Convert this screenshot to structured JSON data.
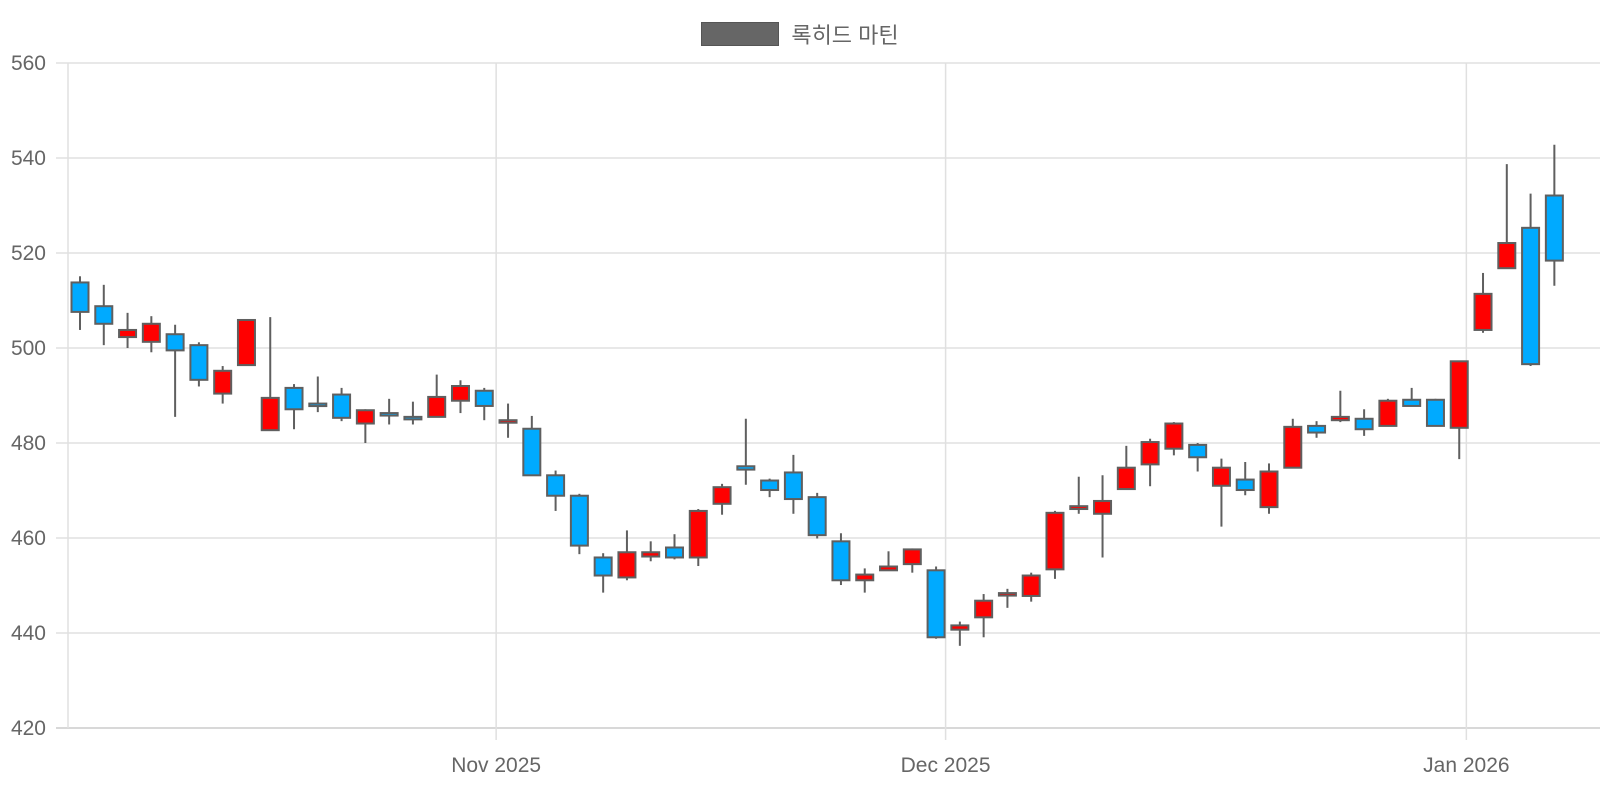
{
  "legend": {
    "label": "록히드 마틴",
    "swatch_color": "#666666"
  },
  "colors": {
    "up": "#ff0000",
    "down": "#00aaff",
    "outline": "#5f5f5f",
    "grid": "#e0e0e0"
  },
  "chart_data": {
    "type": "candlestick",
    "title": "",
    "series_name": "록히드 마틴",
    "xlabel": "",
    "ylabel": "",
    "ylim": [
      420,
      560
    ],
    "yticks": [
      420,
      440,
      460,
      480,
      500,
      520,
      540,
      560
    ],
    "xticks": [
      {
        "label": "Nov 2025",
        "index": 17.5
      },
      {
        "label": "Dec 2025",
        "index": 36.4
      },
      {
        "label": "Jan 2026",
        "index": 58.3
      }
    ],
    "grid": true,
    "legend_position": "top",
    "up_color": "#ff0000",
    "down_color": "#00aaff",
    "candles": [
      {
        "o": 513.8,
        "h": 515.1,
        "l": 503.8,
        "c": 507.6
      },
      {
        "o": 508.8,
        "h": 513.3,
        "l": 500.6,
        "c": 505.1
      },
      {
        "o": 502.3,
        "h": 507.4,
        "l": 500.0,
        "c": 503.8
      },
      {
        "o": 501.3,
        "h": 506.7,
        "l": 499.1,
        "c": 505.1
      },
      {
        "o": 502.9,
        "h": 504.9,
        "l": 485.5,
        "c": 499.5
      },
      {
        "o": 500.6,
        "h": 501.2,
        "l": 491.9,
        "c": 493.3
      },
      {
        "o": 490.4,
        "h": 496.2,
        "l": 488.3,
        "c": 495.2
      },
      {
        "o": 496.4,
        "h": 505.9,
        "l": 496.4,
        "c": 505.9
      },
      {
        "o": 482.7,
        "h": 506.5,
        "l": 482.7,
        "c": 489.5
      },
      {
        "o": 491.6,
        "h": 492.4,
        "l": 482.9,
        "c": 487.1
      },
      {
        "o": 488.3,
        "h": 494.0,
        "l": 486.5,
        "c": 488.1
      },
      {
        "o": 490.2,
        "h": 491.6,
        "l": 484.6,
        "c": 485.3
      },
      {
        "o": 484.1,
        "h": 487.1,
        "l": 480.0,
        "c": 486.9
      },
      {
        "o": 486.3,
        "h": 489.3,
        "l": 483.9,
        "c": 485.8
      },
      {
        "o": 485.5,
        "h": 488.7,
        "l": 483.9,
        "c": 485.1
      },
      {
        "o": 485.5,
        "h": 494.4,
        "l": 485.5,
        "c": 489.7
      },
      {
        "o": 488.9,
        "h": 493.2,
        "l": 486.3,
        "c": 492.0
      },
      {
        "o": 491.0,
        "h": 491.6,
        "l": 484.8,
        "c": 487.8
      },
      {
        "o": 484.6,
        "h": 488.3,
        "l": 481.1,
        "c": 484.8
      },
      {
        "o": 483.0,
        "h": 485.7,
        "l": 473.2,
        "c": 473.2
      },
      {
        "o": 473.2,
        "h": 474.2,
        "l": 465.7,
        "c": 468.9
      },
      {
        "o": 468.9,
        "h": 469.3,
        "l": 456.6,
        "c": 458.4
      },
      {
        "o": 455.9,
        "h": 456.8,
        "l": 448.5,
        "c": 452.1
      },
      {
        "o": 451.7,
        "h": 461.6,
        "l": 451.1,
        "c": 457.0
      },
      {
        "o": 456.1,
        "h": 459.3,
        "l": 455.1,
        "c": 457.0
      },
      {
        "o": 458.0,
        "h": 460.8,
        "l": 455.5,
        "c": 455.9
      },
      {
        "o": 455.9,
        "h": 466.1,
        "l": 454.1,
        "c": 465.7
      },
      {
        "o": 467.2,
        "h": 471.4,
        "l": 464.9,
        "c": 470.7
      },
      {
        "o": 475.1,
        "h": 485.1,
        "l": 471.2,
        "c": 474.4
      },
      {
        "o": 472.1,
        "h": 472.5,
        "l": 468.6,
        "c": 470.1
      },
      {
        "o": 473.8,
        "h": 477.5,
        "l": 465.1,
        "c": 468.2
      },
      {
        "o": 468.6,
        "h": 469.5,
        "l": 459.9,
        "c": 460.6
      },
      {
        "o": 459.3,
        "h": 461.0,
        "l": 450.1,
        "c": 451.1
      },
      {
        "o": 451.1,
        "h": 453.6,
        "l": 448.5,
        "c": 452.3
      },
      {
        "o": 453.2,
        "h": 457.2,
        "l": 453.2,
        "c": 454.0
      },
      {
        "o": 454.5,
        "h": 457.8,
        "l": 452.7,
        "c": 457.6
      },
      {
        "o": 453.2,
        "h": 454.0,
        "l": 438.8,
        "c": 439.1
      },
      {
        "o": 440.7,
        "h": 442.4,
        "l": 437.3,
        "c": 441.6
      },
      {
        "o": 443.3,
        "h": 448.2,
        "l": 439.1,
        "c": 446.8
      },
      {
        "o": 448.2,
        "h": 449.3,
        "l": 445.3,
        "c": 448.4
      },
      {
        "o": 447.8,
        "h": 452.7,
        "l": 446.6,
        "c": 452.1
      },
      {
        "o": 453.4,
        "h": 465.7,
        "l": 451.4,
        "c": 465.3
      },
      {
        "o": 466.1,
        "h": 472.9,
        "l": 465.1,
        "c": 466.7
      },
      {
        "o": 465.1,
        "h": 473.2,
        "l": 455.9,
        "c": 467.8
      },
      {
        "o": 470.3,
        "h": 479.4,
        "l": 470.3,
        "c": 474.8
      },
      {
        "o": 475.5,
        "h": 480.9,
        "l": 470.9,
        "c": 480.2
      },
      {
        "o": 478.8,
        "h": 484.4,
        "l": 477.4,
        "c": 484.1
      },
      {
        "o": 479.6,
        "h": 480.0,
        "l": 474.0,
        "c": 477.0
      },
      {
        "o": 471.0,
        "h": 476.7,
        "l": 462.4,
        "c": 474.8
      },
      {
        "o": 472.3,
        "h": 476.0,
        "l": 469.0,
        "c": 470.1
      },
      {
        "o": 466.5,
        "h": 475.7,
        "l": 465.1,
        "c": 474.0
      },
      {
        "o": 474.8,
        "h": 485.1,
        "l": 474.8,
        "c": 483.4
      },
      {
        "o": 483.6,
        "h": 484.6,
        "l": 481.1,
        "c": 482.2
      },
      {
        "o": 484.8,
        "h": 491.0,
        "l": 484.4,
        "c": 485.5
      },
      {
        "o": 485.1,
        "h": 487.1,
        "l": 481.5,
        "c": 482.9
      },
      {
        "o": 483.6,
        "h": 489.3,
        "l": 483.6,
        "c": 488.9
      },
      {
        "o": 489.1,
        "h": 491.6,
        "l": 488.1,
        "c": 487.8
      },
      {
        "o": 489.1,
        "h": 489.3,
        "l": 483.6,
        "c": 483.6
      },
      {
        "o": 483.2,
        "h": 497.2,
        "l": 476.6,
        "c": 497.2
      },
      {
        "o": 503.8,
        "h": 515.8,
        "l": 503.2,
        "c": 511.4
      },
      {
        "o": 516.8,
        "h": 538.7,
        "l": 516.8,
        "c": 522.1
      },
      {
        "o": 525.3,
        "h": 532.5,
        "l": 496.2,
        "c": 496.6
      },
      {
        "o": 532.1,
        "h": 542.8,
        "l": 513.1,
        "c": 518.4
      }
    ]
  }
}
